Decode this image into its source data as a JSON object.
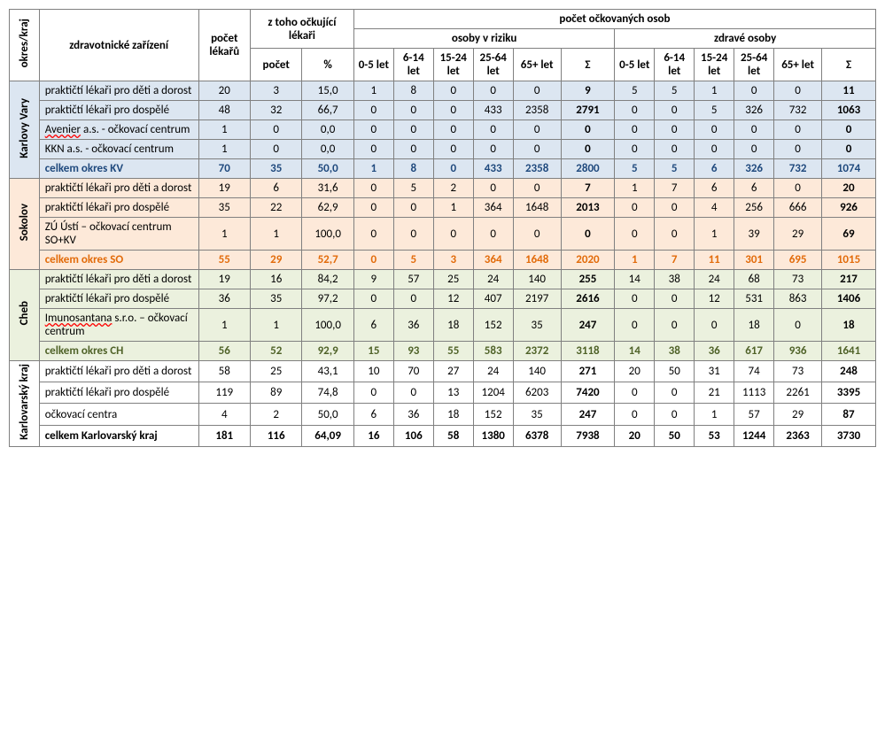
{
  "colors": {
    "kv_bg": "#dce6f1",
    "so_bg": "#fde9d9",
    "ch_bg": "#ebf1de",
    "kv_txt": "#1f497d",
    "so_txt": "#e26b0a",
    "ch_txt": "#4f6228",
    "border": "#808080"
  },
  "headers": {
    "col_region": "okres/kraj",
    "col_facility": "zdravotnické zařízení",
    "col_doctors": "počet lékařů",
    "col_vacc_doctors": "z toho očkující lékaři",
    "col_count": "počet",
    "col_percent": "%",
    "col_vacc_persons": "počet očkovaných osob",
    "col_at_risk": "osoby v riziku",
    "col_healthy": "zdravé osoby",
    "age_0_5": "0-5 let",
    "age_6_14": "6-14 let",
    "age_15_24": "15-24 let",
    "age_25_64": "25-64 let",
    "age_65": "65+ let",
    "sum": "Σ"
  },
  "regions": [
    {
      "key": "kv",
      "name": "Karlovy Vary",
      "bg_class": "bg-kv",
      "sum_txt_class": "txt-kv",
      "rows": [
        {
          "label": "praktičtí lékaři pro děti a dorost",
          "lek": "20",
          "cnt": "3",
          "pct": "15,0",
          "r": [
            "1",
            "8",
            "0",
            "0",
            "0",
            "9"
          ],
          "h": [
            "5",
            "5",
            "1",
            "0",
            "0",
            "11"
          ]
        },
        {
          "label": "praktičtí lékaři pro dospělé",
          "lek": "48",
          "cnt": "32",
          "pct": "66,7",
          "r": [
            "0",
            "0",
            "0",
            "433",
            "2358",
            "2791"
          ],
          "h": [
            "0",
            "0",
            "5",
            "326",
            "732",
            "1063"
          ]
        },
        {
          "label": "Avenier a.s. - očkovací centrum",
          "spell_words": [
            "Avenier"
          ],
          "lek": "1",
          "cnt": "0",
          "pct": "0,0",
          "r": [
            "0",
            "0",
            "0",
            "0",
            "0",
            "0"
          ],
          "h": [
            "0",
            "0",
            "0",
            "0",
            "0",
            "0"
          ]
        },
        {
          "label": "KKN a.s. - očkovací centrum",
          "lek": "1",
          "cnt": "0",
          "pct": "0,0",
          "r": [
            "0",
            "0",
            "0",
            "0",
            "0",
            "0"
          ],
          "h": [
            "0",
            "0",
            "0",
            "0",
            "0",
            "0"
          ]
        }
      ],
      "total": {
        "label": "celkem okres KV",
        "lek": "70",
        "cnt": "35",
        "pct": "50,0",
        "r": [
          "1",
          "8",
          "0",
          "433",
          "2358",
          "2800"
        ],
        "h": [
          "5",
          "5",
          "6",
          "326",
          "732",
          "1074"
        ]
      }
    },
    {
      "key": "so",
      "name": "Sokolov",
      "bg_class": "bg-so",
      "sum_txt_class": "txt-so",
      "rows": [
        {
          "label": "praktičtí lékaři pro děti a dorost",
          "lek": "19",
          "cnt": "6",
          "pct": "31,6",
          "r": [
            "0",
            "5",
            "2",
            "0",
            "0",
            "7"
          ],
          "h": [
            "1",
            "7",
            "6",
            "6",
            "0",
            "20"
          ]
        },
        {
          "label": "praktičtí lékaři pro dospělé",
          "lek": "35",
          "cnt": "22",
          "pct": "62,9",
          "r": [
            "0",
            "0",
            "1",
            "364",
            "1648",
            "2013"
          ],
          "h": [
            "0",
            "0",
            "4",
            "256",
            "666",
            "926"
          ]
        },
        {
          "label": "ZÚ Ústí – očkovací centrum SO+KV",
          "lek": "1",
          "cnt": "1",
          "pct": "100,0",
          "r": [
            "0",
            "0",
            "0",
            "0",
            "0",
            "0"
          ],
          "h": [
            "0",
            "0",
            "1",
            "39",
            "29",
            "69"
          ]
        }
      ],
      "total": {
        "label": "celkem okres SO",
        "lek": "55",
        "cnt": "29",
        "pct": "52,7",
        "r": [
          "0",
          "5",
          "3",
          "364",
          "1648",
          "2020"
        ],
        "h": [
          "1",
          "7",
          "11",
          "301",
          "695",
          "1015"
        ]
      }
    },
    {
      "key": "ch",
      "name": "Cheb",
      "bg_class": "bg-ch",
      "sum_txt_class": "txt-ch",
      "rows": [
        {
          "label": "praktičtí lékaři pro děti a dorost",
          "lek": "19",
          "cnt": "16",
          "pct": "84,2",
          "r": [
            "9",
            "57",
            "25",
            "24",
            "140",
            "255"
          ],
          "h": [
            "14",
            "38",
            "24",
            "68",
            "73",
            "217"
          ]
        },
        {
          "label": "praktičtí lékaři pro dospělé",
          "lek": "36",
          "cnt": "35",
          "pct": "97,2",
          "r": [
            "0",
            "0",
            "12",
            "407",
            "2197",
            "2616"
          ],
          "h": [
            "0",
            "0",
            "12",
            "531",
            "863",
            "1406"
          ]
        },
        {
          "label": "Imunosantana s.r.o. – očkovací centrum",
          "spell_words": [
            "Imunosantana"
          ],
          "lek": "1",
          "cnt": "1",
          "pct": "100,0",
          "r": [
            "6",
            "36",
            "18",
            "152",
            "35",
            "247"
          ],
          "h": [
            "0",
            "0",
            "0",
            "18",
            "0",
            "18"
          ]
        }
      ],
      "total": {
        "label": "celkem okres CH",
        "lek": "56",
        "cnt": "52",
        "pct": "92,9",
        "r": [
          "15",
          "93",
          "55",
          "583",
          "2372",
          "3118"
        ],
        "h": [
          "14",
          "38",
          "36",
          "617",
          "936",
          "1641"
        ]
      }
    },
    {
      "key": "kraj",
      "name": "Karlovarský kraj",
      "bg_class": "bg-wh",
      "sum_txt_class": "",
      "grand": true,
      "rows": [
        {
          "label": "praktičtí lékaři pro děti a dorost",
          "lek": "58",
          "cnt": "25",
          "pct": "43,1",
          "r": [
            "10",
            "70",
            "27",
            "24",
            "140",
            "271"
          ],
          "h": [
            "20",
            "50",
            "31",
            "74",
            "73",
            "248"
          ]
        },
        {
          "label": "praktičtí lékaři pro dospělé",
          "lek": "119",
          "cnt": "89",
          "pct": "74,8",
          "r": [
            "0",
            "0",
            "13",
            "1204",
            "6203",
            "7420"
          ],
          "h": [
            "0",
            "0",
            "21",
            "1113",
            "2261",
            "3395"
          ]
        },
        {
          "label": "očkovací centra",
          "lek": "4",
          "cnt": "2",
          "pct": "50,0",
          "r": [
            "6",
            "36",
            "18",
            "152",
            "35",
            "247"
          ],
          "h": [
            "0",
            "0",
            "1",
            "57",
            "29",
            "87"
          ]
        }
      ],
      "total": {
        "label": "celkem Karlovarský kraj",
        "lek": "181",
        "cnt": "116",
        "pct": "64,09",
        "r": [
          "16",
          "106",
          "58",
          "1380",
          "6378",
          "7938"
        ],
        "h": [
          "20",
          "50",
          "53",
          "1244",
          "2363",
          "3730"
        ]
      }
    }
  ]
}
